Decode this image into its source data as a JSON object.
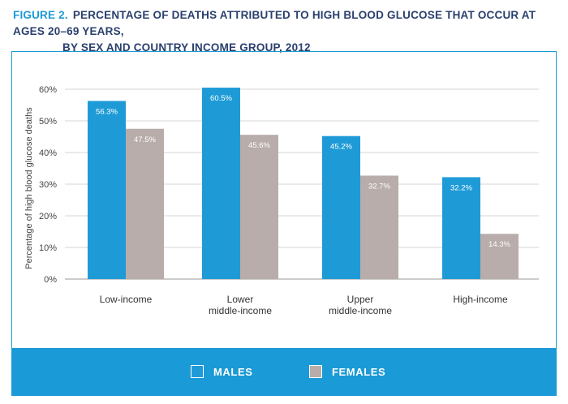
{
  "figure": {
    "label": "FIGURE 2.",
    "title_line1": "PERCENTAGE OF DEATHS ATTRIBUTED TO HIGH BLOOD GLUCOSE THAT OCCUR AT AGES 20–69 YEARS,",
    "title_line2": "BY SEX AND COUNTRY INCOME GROUP, 2012"
  },
  "legend": {
    "males_label": "MALES",
    "females_label": "FEMALES"
  },
  "colors": {
    "males": "#1e9bd7",
    "females": "#b8adaa",
    "accent": "#1a9ad6",
    "title": "#2a3f6e"
  },
  "chart_data": {
    "type": "bar",
    "title": "Percentage of deaths attributed to high blood glucose that occur at ages 20–69 years, by sex and country income group, 2012",
    "xlabel": "",
    "ylabel": "Percentage of high blood glucose deaths",
    "ylim": [
      0,
      60
    ],
    "yticks": [
      0,
      10,
      20,
      30,
      40,
      50,
      60
    ],
    "ytick_labels": [
      "0%",
      "10%",
      "20%",
      "30%",
      "40%",
      "50%",
      "60%"
    ],
    "grid": true,
    "legend_position": "bottom",
    "categories": [
      [
        "Low-income"
      ],
      [
        "Lower",
        "middle-income"
      ],
      [
        "Upper",
        "middle-income"
      ],
      [
        "High-income"
      ]
    ],
    "series": [
      {
        "name": "MALES",
        "values": [
          56.3,
          60.5,
          45.2,
          32.2
        ],
        "labels": [
          "56.3%",
          "60.5%",
          "45.2%",
          "32.2%"
        ]
      },
      {
        "name": "FEMALES",
        "values": [
          47.5,
          45.6,
          32.7,
          14.3
        ],
        "labels": [
          "47.5%",
          "45.6%",
          "32.7%",
          "14.3%"
        ]
      }
    ]
  }
}
